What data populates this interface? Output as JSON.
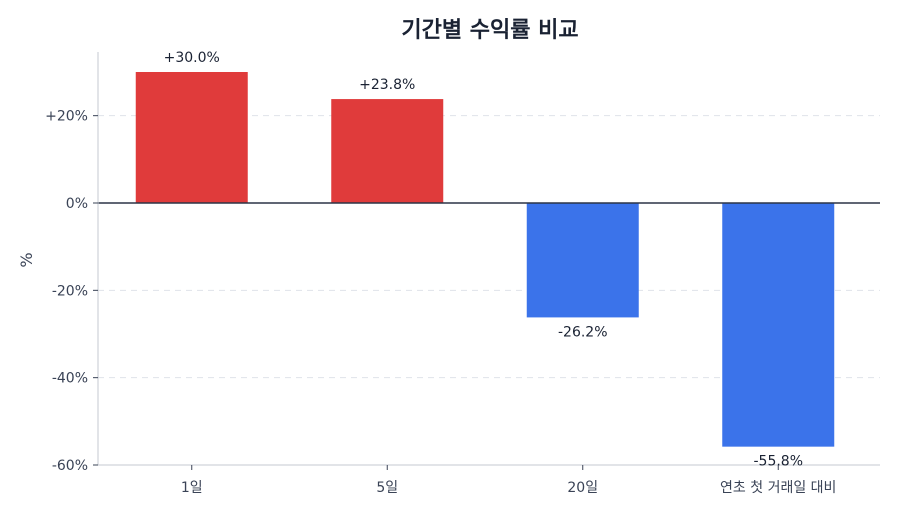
{
  "chart_data": {
    "type": "bar",
    "title": "기간별 수익률 비교",
    "xlabel": "",
    "ylabel": "%",
    "categories": [
      "1일",
      "5일",
      "20일",
      "연초 첫 거래일 대비"
    ],
    "values": [
      30.0,
      23.8,
      -26.2,
      -55.8
    ],
    "data_labels": [
      "+30.0%",
      "+23.8%",
      "-26.2%",
      "-55.8%"
    ],
    "ylim": [
      -60,
      35
    ],
    "yticks": [
      20,
      0,
      -20,
      -40,
      -60
    ],
    "ytick_labels": [
      "+20%",
      "0%",
      "-20%",
      "-40%",
      "-60%"
    ],
    "grid": true,
    "colors": {
      "positive": "#e03b3b",
      "negative": "#3b73ea"
    }
  }
}
